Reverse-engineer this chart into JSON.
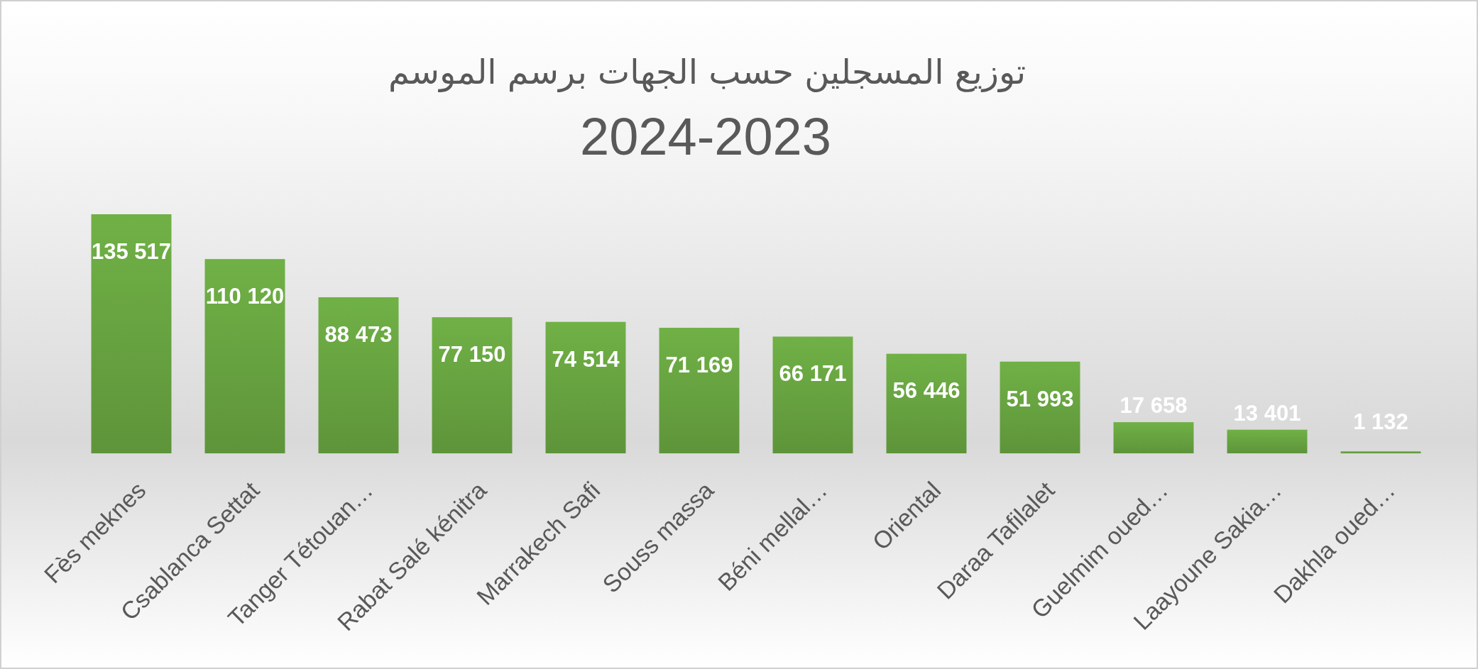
{
  "chart_data": {
    "type": "bar",
    "title": "توزيع المسجلين حسب الجهات برسم الموسم",
    "subtitle": "2024-2023",
    "categories": [
      "Fès meknes",
      "Csablanca Settat",
      "Tanger Tétouan…",
      "Rabat Salé kénitra",
      "Marrakech Safi",
      "Souss massa",
      "Béni mellal…",
      "Oriental",
      "Daraa Tafilalet",
      "Guelmim oued…",
      "Laayoune Sakia…",
      "Dakhla oued…"
    ],
    "values": [
      135517,
      110120,
      88473,
      77150,
      74514,
      71169,
      66171,
      56446,
      51993,
      17658,
      13401,
      1132
    ],
    "value_labels": [
      "135 517",
      "110 120",
      "88 473",
      "77 150",
      "74 514",
      "71 169",
      "66 171",
      "56 446",
      "51 993",
      "17 658",
      "13 401",
      "1 132"
    ],
    "color": "#6aa842",
    "tick_labels": "x"
  }
}
